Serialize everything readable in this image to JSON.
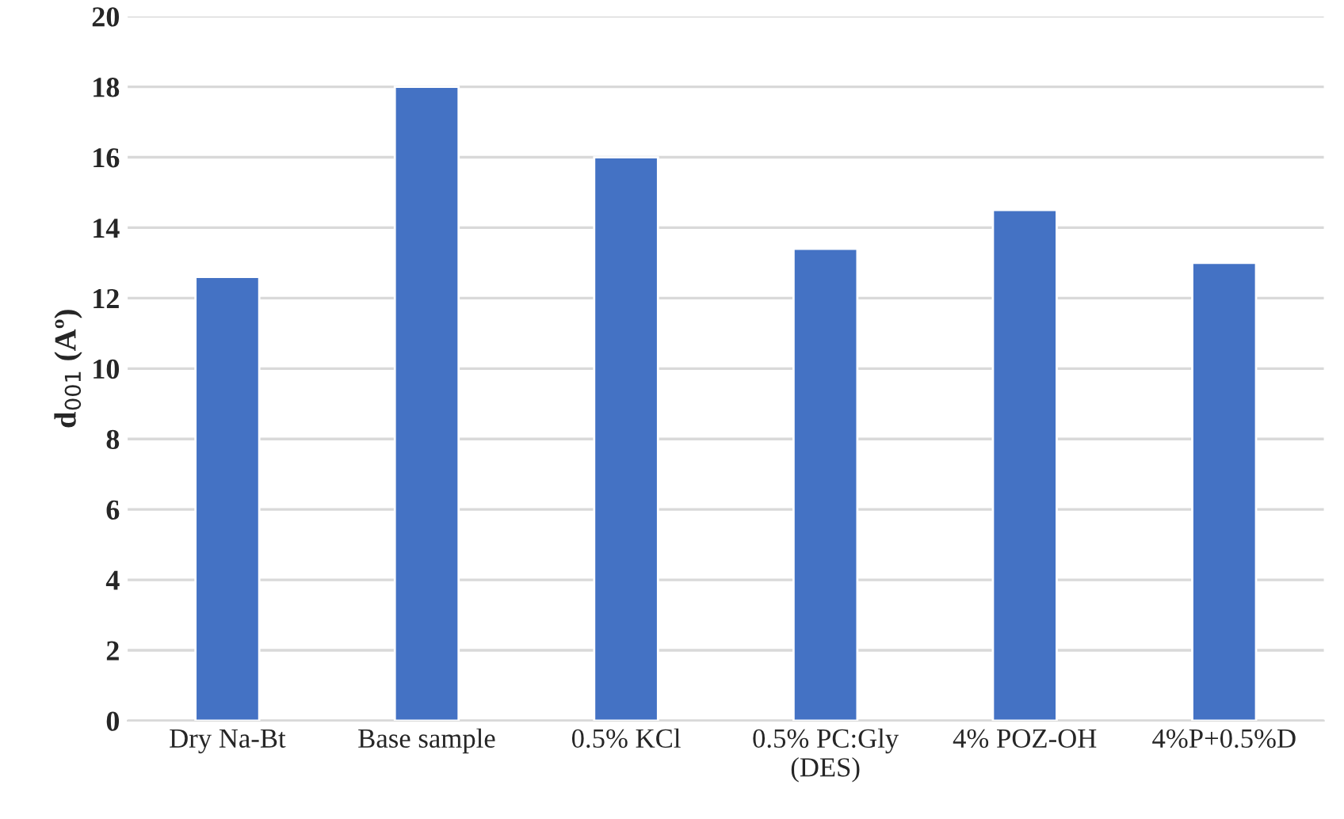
{
  "chart_data": {
    "type": "bar",
    "ylabel": "d$_{001}$ (Aº)",
    "categories": [
      "Dry Na-Bt",
      "Base sample",
      "0.5% KCl",
      "0.5% PC:Gly\n(DES)",
      "4% POZ-OH",
      "4%P+0.5%D"
    ],
    "values": [
      12.6,
      18.0,
      16.0,
      13.4,
      14.5,
      13.0
    ],
    "color": "#4472c4",
    "ylim": [
      0,
      20
    ],
    "yticks": [
      0,
      2,
      4,
      6,
      8,
      10,
      12,
      14,
      16,
      18,
      20
    ],
    "grid": "y"
  }
}
